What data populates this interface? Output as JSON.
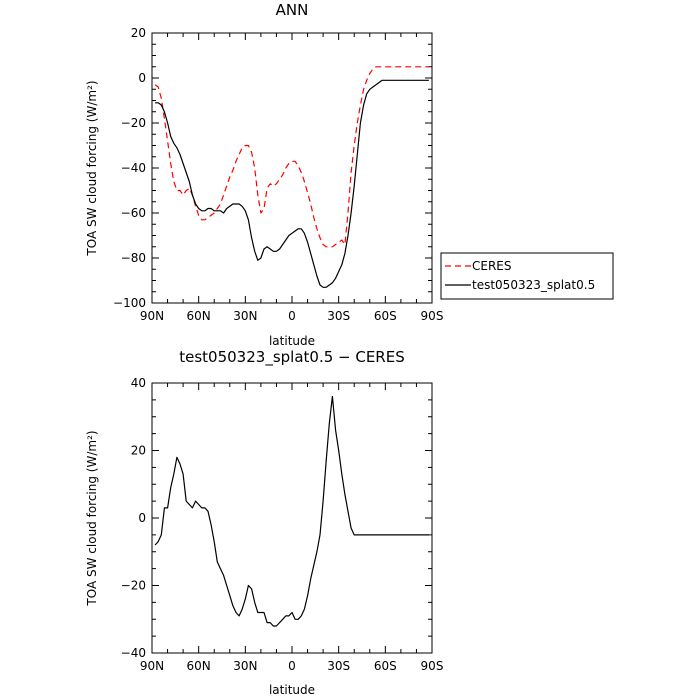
{
  "chart_data": [
    {
      "type": "line",
      "title": "ANN",
      "xlabel": "latitude",
      "ylabel": "TOA SW cloud forcing (W/m²)",
      "xlim": [
        90,
        -90
      ],
      "ylim": [
        -100,
        20
      ],
      "grid": false,
      "legend_position": "right",
      "x_ticks": [
        90,
        60,
        30,
        0,
        -30,
        -60,
        -90
      ],
      "x_tick_labels": [
        "90N",
        "60N",
        "30N",
        "0",
        "30S",
        "60S",
        "90S"
      ],
      "y_ticks": [
        20,
        0,
        -20,
        -40,
        -60,
        -80,
        -100
      ],
      "y_tick_labels": [
        "20",
        "0",
        "−20",
        "−40",
        "−60",
        "−80",
        "−100"
      ],
      "series": [
        {
          "name": "CERES",
          "color": "#ff0000",
          "dash": "dashed",
          "x": [
            88,
            86,
            84,
            82,
            80,
            78,
            76,
            74,
            72,
            70,
            68,
            66,
            64,
            62,
            60,
            58,
            56,
            54,
            52,
            50,
            48,
            46,
            44,
            42,
            40,
            38,
            36,
            34,
            32,
            30,
            28,
            26,
            24,
            22,
            20,
            18,
            16,
            14,
            12,
            10,
            8,
            6,
            4,
            2,
            0,
            -2,
            -4,
            -6,
            -8,
            -10,
            -12,
            -14,
            -16,
            -18,
            -20,
            -22,
            -24,
            -26,
            -28,
            -30,
            -32,
            -34,
            -36,
            -38,
            -40,
            -42,
            -44,
            -46,
            -48,
            -50,
            -52,
            -54,
            -56,
            -58,
            -60,
            -62,
            -64,
            -66,
            -68,
            -70,
            -72,
            -74,
            -76,
            -78,
            -80,
            -82,
            -84,
            -86,
            -88
          ],
          "y": [
            -3,
            -4,
            -9,
            -18,
            -28,
            -38,
            -46,
            -50,
            -50,
            -52,
            -50,
            -49,
            -52,
            -57,
            -61,
            -63,
            -63,
            -62,
            -61,
            -60,
            -58,
            -56,
            -52,
            -48,
            -44,
            -41,
            -37,
            -34,
            -31,
            -30,
            -30,
            -33,
            -40,
            -52,
            -60,
            -58,
            -49,
            -47,
            -48,
            -47,
            -45,
            -43,
            -40,
            -38,
            -37,
            -37,
            -39,
            -42,
            -46,
            -51,
            -56,
            -62,
            -67,
            -71,
            -74,
            -75,
            -75,
            -75,
            -74,
            -73,
            -72,
            -74,
            -60,
            -42,
            -30,
            -20,
            -12,
            -5,
            -1,
            2,
            4,
            5,
            5,
            5,
            5,
            5,
            5,
            5,
            5,
            5,
            5,
            5,
            5,
            5,
            5,
            5,
            5,
            5,
            5
          ]
        },
        {
          "name": "test050323_splat0.5",
          "color": "#000000",
          "dash": "solid",
          "x": [
            88,
            86,
            84,
            82,
            80,
            78,
            76,
            74,
            72,
            70,
            68,
            66,
            64,
            62,
            60,
            58,
            56,
            54,
            52,
            50,
            48,
            46,
            44,
            42,
            40,
            38,
            36,
            34,
            32,
            30,
            28,
            26,
            24,
            22,
            20,
            18,
            16,
            14,
            12,
            10,
            8,
            6,
            4,
            2,
            0,
            -2,
            -4,
            -6,
            -8,
            -10,
            -12,
            -14,
            -16,
            -18,
            -20,
            -22,
            -24,
            -26,
            -28,
            -30,
            -32,
            -34,
            -36,
            -38,
            -40,
            -42,
            -44,
            -46,
            -48,
            -50,
            -52,
            -54,
            -56,
            -58,
            -60,
            -62,
            -64,
            -66,
            -68,
            -70,
            -72,
            -74,
            -76,
            -78,
            -80,
            -82,
            -84,
            -86,
            -88
          ],
          "y": [
            -11,
            -11,
            -12,
            -15,
            -20,
            -26,
            -29,
            -31,
            -34,
            -38,
            -42,
            -46,
            -52,
            -56,
            -58,
            -59,
            -59,
            -58,
            -58,
            -59,
            -59,
            -59,
            -60,
            -58,
            -57,
            -56,
            -56,
            -56,
            -57,
            -59,
            -63,
            -71,
            -77,
            -81,
            -80,
            -76,
            -75,
            -76,
            -77,
            -77,
            -76,
            -74,
            -72,
            -70,
            -69,
            -68,
            -67,
            -67,
            -69,
            -73,
            -78,
            -83,
            -88,
            -92,
            -93,
            -93,
            -92,
            -91,
            -89,
            -86,
            -83,
            -78,
            -70,
            -60,
            -48,
            -34,
            -20,
            -12,
            -7,
            -5,
            -4,
            -3,
            -2,
            -1,
            -1,
            -1,
            -1,
            -1,
            -1,
            -1,
            -1,
            -1,
            -1,
            -1,
            -1,
            -1,
            -1,
            -1,
            -1
          ]
        }
      ]
    },
    {
      "type": "line",
      "title": "test050323_splat0.5 − CERES",
      "xlabel": "latitude",
      "ylabel": "TOA SW cloud forcing (W/m²)",
      "xlim": [
        90,
        -90
      ],
      "ylim": [
        -40,
        40
      ],
      "grid": false,
      "x_ticks": [
        90,
        60,
        30,
        0,
        -30,
        -60,
        -90
      ],
      "x_tick_labels": [
        "90N",
        "60N",
        "30N",
        "0",
        "30S",
        "60S",
        "90S"
      ],
      "y_ticks": [
        40,
        20,
        0,
        -20,
        -40
      ],
      "y_tick_labels": [
        "40",
        "20",
        "0",
        "−20",
        "−40"
      ],
      "series": [
        {
          "color": "#000000",
          "dash": "solid",
          "x": [
            88,
            86,
            84,
            82,
            80,
            78,
            76,
            74,
            72,
            70,
            68,
            66,
            64,
            62,
            60,
            58,
            56,
            54,
            52,
            50,
            48,
            46,
            44,
            42,
            40,
            38,
            36,
            34,
            32,
            30,
            28,
            26,
            24,
            22,
            20,
            18,
            16,
            14,
            12,
            10,
            8,
            6,
            4,
            2,
            0,
            -2,
            -4,
            -6,
            -8,
            -10,
            -12,
            -14,
            -16,
            -18,
            -20,
            -22,
            -24,
            -26,
            -28,
            -30,
            -32,
            -34,
            -36,
            -38,
            -40,
            -42,
            -44,
            -46,
            -48,
            -50,
            -52,
            -54,
            -56,
            -58,
            -60,
            -62,
            -64,
            -66,
            -68,
            -70,
            -72,
            -74,
            -76,
            -78,
            -80,
            -82,
            -84,
            -86,
            -88
          ],
          "y": [
            -8,
            -7,
            -5,
            3,
            3,
            9,
            13,
            18,
            16,
            13,
            5,
            4,
            3,
            5,
            4,
            3,
            3,
            2,
            -2,
            -7,
            -13,
            -15,
            -17,
            -20,
            -23,
            -26,
            -28,
            -29,
            -27,
            -24,
            -20,
            -21,
            -25,
            -28,
            -28,
            -28,
            -31,
            -31,
            -32,
            -32,
            -31,
            -30,
            -29,
            -29,
            -28,
            -30,
            -30,
            -29,
            -27,
            -23,
            -18,
            -14,
            -10,
            -5,
            5,
            17,
            28,
            36,
            26,
            20,
            13,
            7,
            2,
            -3,
            -5,
            -5,
            -5,
            -5,
            -5,
            -5,
            -5,
            -5,
            -5,
            -5,
            -5,
            -5,
            -5,
            -5,
            -5,
            -5,
            -5,
            -5,
            -5,
            -5,
            -5,
            -5,
            -5,
            -5,
            -5
          ]
        }
      ]
    }
  ]
}
